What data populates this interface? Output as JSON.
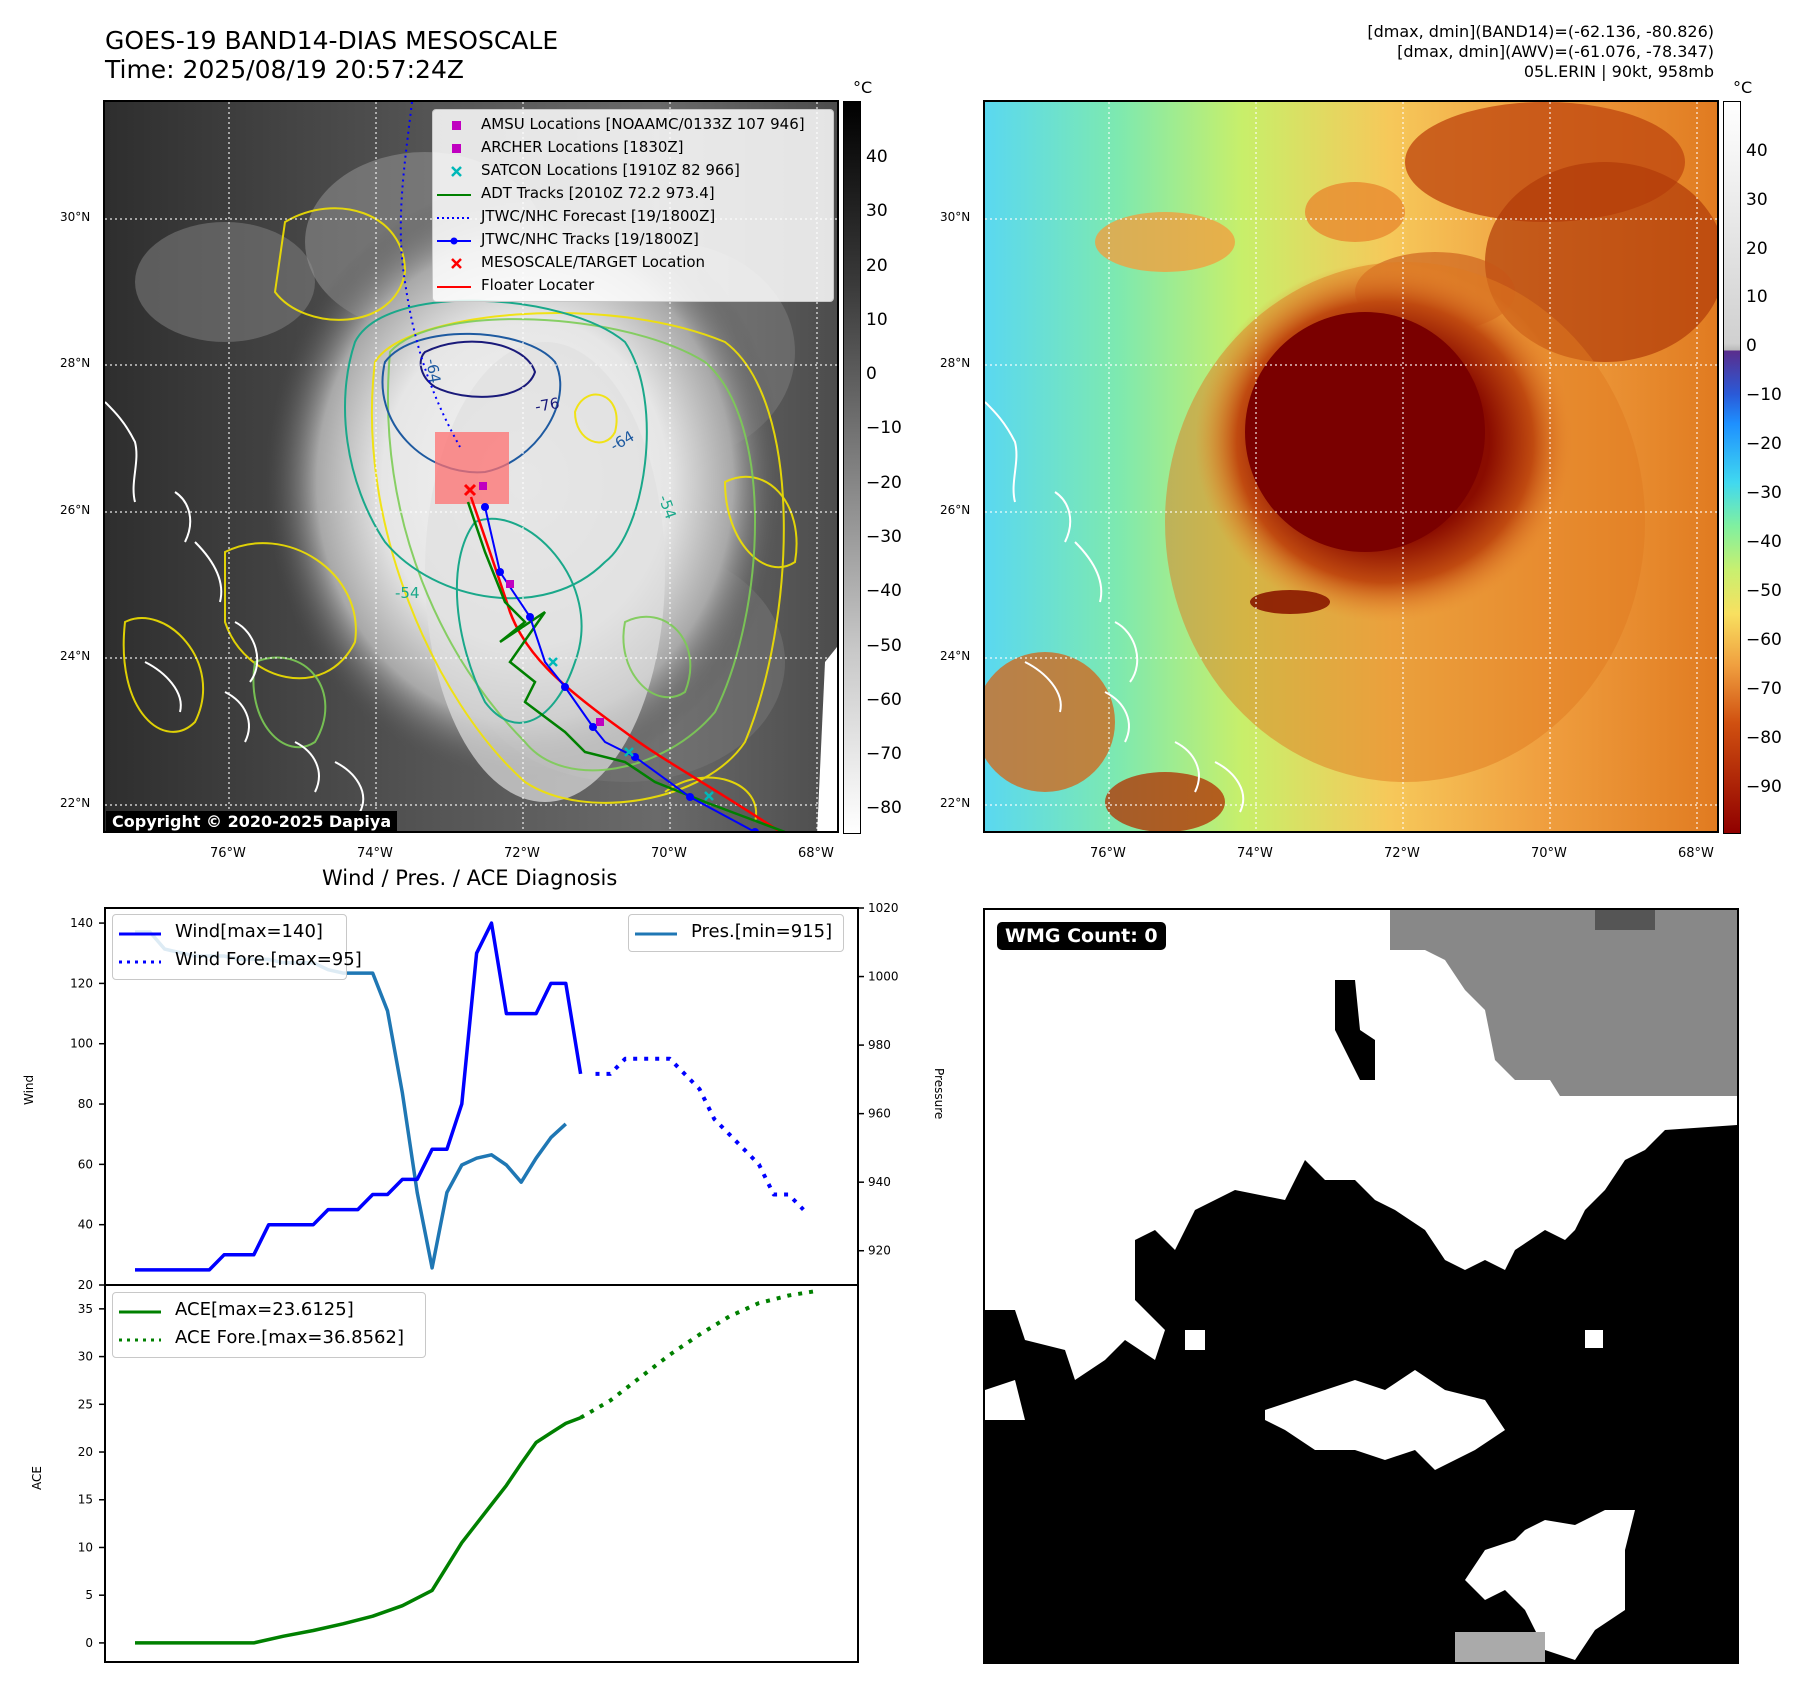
{
  "header": {
    "title_line1": "GOES-19 BAND14-DIAS MESOSCALE",
    "title_line2": "Time: 2025/08/19 20:57:24Z",
    "info_line1": "[dmax, dmin](BAND14)=(-62.136, -80.826)",
    "info_line2": "[dmax, dmin](AWV)=(-61.076, -78.347)",
    "info_line3": "05L.ERIN | 90kt, 958mb"
  },
  "ir_panel": {
    "lat_labels": [
      "30°N",
      "28°N",
      "26°N",
      "24°N",
      "22°N"
    ],
    "lon_labels": [
      "76°W",
      "74°W",
      "72°W",
      "70°W",
      "68°W"
    ],
    "contour_labels": [
      "-76",
      "-64",
      "-64",
      "-54",
      "-54"
    ],
    "copyright": "Copyright © 2020-2025 Dapiya",
    "colorbar_unit": "°C",
    "colorbar_ticks": [
      "40",
      "30",
      "20",
      "10",
      "0",
      "−10",
      "−20",
      "−30",
      "−40",
      "−50",
      "−60",
      "−70",
      "−80"
    ],
    "legend": [
      {
        "label": "AMSU Locations [NOAAMC/0133Z 107 946]",
        "marker": "square",
        "color": "#c000c0"
      },
      {
        "label": "ARCHER Locations [1830Z]",
        "marker": "square",
        "color": "#c000c0"
      },
      {
        "label": "SATCON Locations [1910Z 82 966]",
        "marker": "x",
        "color": "#00b8b8"
      },
      {
        "label": "ADT Tracks [2010Z 72.2 973.4]",
        "marker": "line",
        "color": "#008000"
      },
      {
        "label": "JTWC/NHC Forecast [19/1800Z]",
        "marker": "dotted",
        "color": "#0000ff"
      },
      {
        "label": "JTWC/NHC Tracks [19/1800Z]",
        "marker": "line-dot",
        "color": "#0000ff"
      },
      {
        "label": "MESOSCALE/TARGET Location",
        "marker": "x",
        "color": "#ff0000"
      },
      {
        "label": "Floater Locater",
        "marker": "line",
        "color": "#ff0000"
      }
    ]
  },
  "awv_panel": {
    "lat_labels": [
      "30°N",
      "28°N",
      "26°N",
      "24°N",
      "22°N"
    ],
    "lon_labels": [
      "76°W",
      "74°W",
      "72°W",
      "70°W",
      "68°W"
    ],
    "colorbar_unit": "°C",
    "colorbar_ticks": [
      "40",
      "30",
      "20",
      "10",
      "0",
      "−10",
      "−20",
      "−30",
      "−40",
      "−50",
      "−60",
      "−70",
      "−80",
      "−90"
    ]
  },
  "wmg_panel": {
    "badge": "WMG Count: 0"
  },
  "chart_data": [
    {
      "type": "line",
      "title": "Wind / Pres. / ACE Diagnosis",
      "ylabel": "Wind",
      "ylabel_right": "Pressure",
      "ylim": [
        20,
        145
      ],
      "ylim_right": [
        910,
        1020
      ],
      "yticks": [
        20,
        40,
        60,
        80,
        100,
        120,
        140
      ],
      "yticks_right": [
        920,
        940,
        960,
        980,
        1000,
        1020
      ],
      "legend_left": [
        "Wind[max=140]",
        "Wind Fore.[max=95]"
      ],
      "legend_right": [
        "Pres.[min=915]"
      ],
      "series": [
        {
          "name": "Wind[max=140]",
          "style": "solid",
          "color": "#0000ff",
          "x": [
            0,
            5,
            6,
            8,
            9,
            10,
            11,
            12,
            13,
            14,
            15,
            16,
            17,
            18,
            19,
            20,
            21,
            22,
            23,
            24,
            25,
            26,
            27,
            28,
            29,
            30
          ],
          "values": [
            25,
            25,
            30,
            30,
            40,
            40,
            40,
            40,
            45,
            45,
            45,
            50,
            50,
            55,
            55,
            65,
            65,
            80,
            130,
            140,
            110,
            110,
            110,
            120,
            120,
            90
          ]
        },
        {
          "name": "Wind Fore.[max=95]",
          "style": "dotted",
          "color": "#0000ff",
          "x": [
            31,
            32,
            33,
            34,
            35,
            36,
            37,
            38,
            39,
            40,
            41,
            42,
            43,
            44,
            45
          ],
          "values": [
            90,
            90,
            95,
            95,
            95,
            95,
            90,
            85,
            75,
            70,
            65,
            60,
            50,
            50,
            45
          ]
        },
        {
          "name": "Pres.[min=915]",
          "style": "solid",
          "color": "#1f77b4",
          "x": [
            0,
            1,
            2,
            3,
            4,
            5,
            6,
            7,
            8,
            9,
            10,
            11,
            12,
            13,
            14,
            15,
            16,
            17,
            18,
            19,
            20,
            21,
            22,
            23,
            24,
            25,
            26,
            27,
            28,
            29
          ],
          "values": [
            1013,
            1013,
            1008,
            1007,
            1006,
            1006,
            1006,
            1005,
            1005,
            1005,
            1004,
            1004,
            1004,
            1002,
            1001,
            1001,
            1001,
            990,
            966,
            937,
            915,
            937,
            945,
            947,
            948,
            945,
            940,
            947,
            953,
            957
          ]
        }
      ]
    },
    {
      "type": "line",
      "ylabel": "ACE",
      "ylim": [
        -2,
        37.5
      ],
      "yticks": [
        0,
        5,
        10,
        15,
        20,
        25,
        30,
        35
      ],
      "legend": [
        "ACE[max=23.6125]",
        "ACE Fore.[max=36.8562]"
      ],
      "series": [
        {
          "name": "ACE[max=23.6125]",
          "style": "solid",
          "color": "#008000",
          "x": [
            0,
            2,
            4,
            6,
            8,
            10,
            12,
            14,
            16,
            18,
            20,
            22,
            24,
            25,
            26,
            27,
            28,
            29,
            30
          ],
          "values": [
            0,
            0,
            0,
            0,
            0,
            0.7,
            1.3,
            2,
            2.8,
            3.9,
            5.5,
            10.5,
            14.5,
            16.5,
            18.8,
            21,
            22,
            23,
            23.6
          ]
        },
        {
          "name": "ACE Fore.[max=36.8562]",
          "style": "dotted",
          "color": "#008000",
          "x": [
            30,
            32,
            34,
            36,
            38,
            40,
            42,
            44,
            46
          ],
          "values": [
            23.6,
            25.4,
            27.8,
            30.2,
            32.3,
            34.2,
            35.6,
            36.4,
            36.9
          ]
        }
      ]
    }
  ]
}
